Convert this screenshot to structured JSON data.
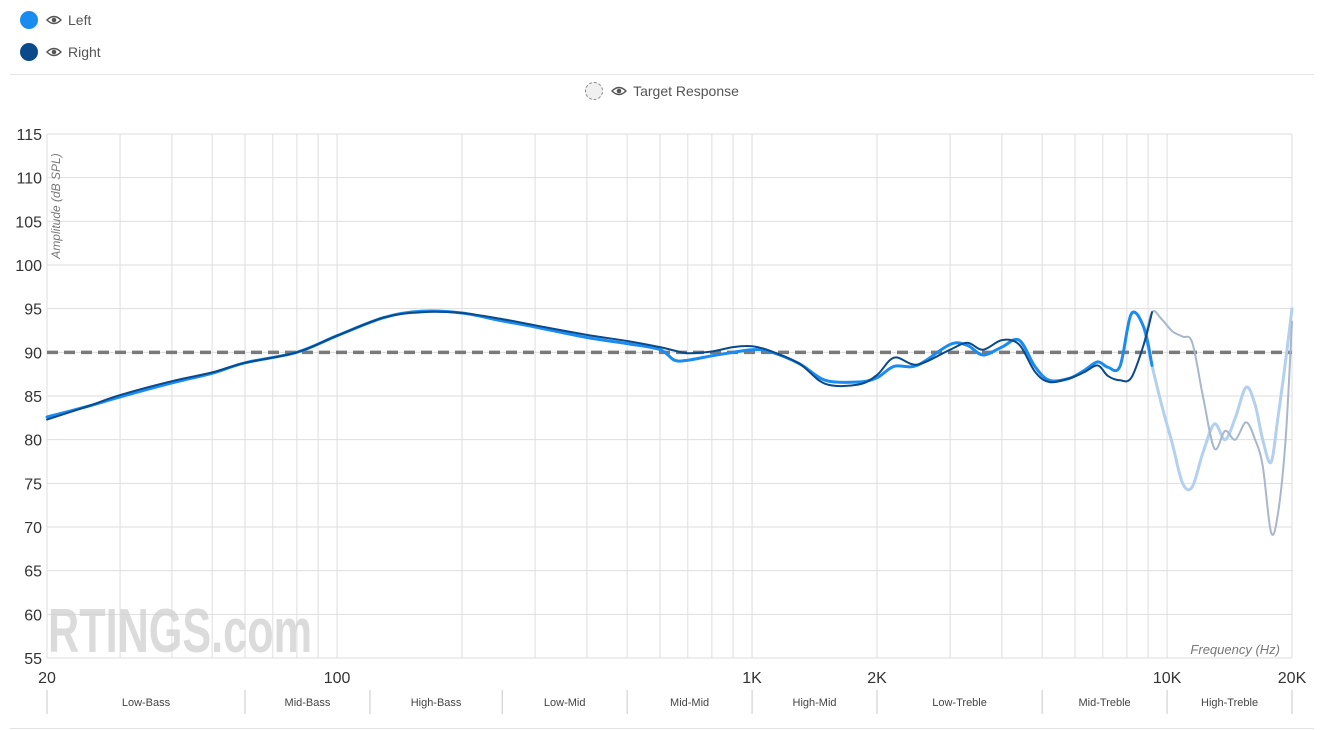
{
  "legend": {
    "left": {
      "label": "Left",
      "color": "#1a8cf0",
      "icon": "eye-icon"
    },
    "right": {
      "label": "Right",
      "color": "#0a4a8a",
      "icon": "eye-icon"
    },
    "target": {
      "label": "Target Response",
      "icon": "eye-icon"
    }
  },
  "watermark": "RTINGS.com",
  "chart_data": {
    "type": "line",
    "xscale": "log",
    "xlim": [
      20,
      20000
    ],
    "ylim": [
      55,
      115
    ],
    "ylabel": "Amplitude (dB SPL)",
    "xlabel": "Frequency (Hz)",
    "grid": true,
    "y_ticks": [
      "55",
      "60",
      "65",
      "70",
      "75",
      "80",
      "85",
      "90",
      "95",
      "100",
      "105",
      "110",
      "115"
    ],
    "x_ticks": [
      {
        "value": 20,
        "label": "20"
      },
      {
        "value": 100,
        "label": "100"
      },
      {
        "value": 1000,
        "label": "1K"
      },
      {
        "value": 2000,
        "label": "2K"
      },
      {
        "value": 10000,
        "label": "10K"
      },
      {
        "value": 20000,
        "label": "20K"
      }
    ],
    "bands": [
      {
        "label": "Low-Bass",
        "from": 20,
        "to": 60
      },
      {
        "label": "Mid-Bass",
        "from": 60,
        "to": 120
      },
      {
        "label": "High-Bass",
        "from": 120,
        "to": 250
      },
      {
        "label": "Low-Mid",
        "from": 250,
        "to": 500
      },
      {
        "label": "Mid-Mid",
        "from": 500,
        "to": 1000
      },
      {
        "label": "High-Mid",
        "from": 1000,
        "to": 2000
      },
      {
        "label": "Low-Treble",
        "from": 2000,
        "to": 5000
      },
      {
        "label": "Mid-Treble",
        "from": 5000,
        "to": 10000
      },
      {
        "label": "High-Treble",
        "from": 10000,
        "to": 20000
      }
    ],
    "target_level": 90,
    "fade_start": 9000,
    "series": [
      {
        "name": "Left",
        "color": "#1a8cf0",
        "fade_color": "#b3d0ef",
        "x": [
          20,
          25,
          30,
          40,
          50,
          60,
          80,
          100,
          130,
          160,
          200,
          250,
          300,
          400,
          500,
          600,
          650,
          700,
          800,
          900,
          1000,
          1100,
          1300,
          1500,
          1800,
          2000,
          2200,
          2500,
          3000,
          3300,
          3600,
          4000,
          4400,
          4800,
          5200,
          5800,
          6300,
          6800,
          7200,
          7700,
          8200,
          8800,
          9200,
          9700,
          10300,
          10900,
          11500,
          12200,
          13000,
          13800,
          14600,
          15500,
          16300,
          17000,
          17800,
          18500,
          19300,
          20000
        ],
        "y": [
          82.6,
          83.8,
          84.9,
          86.5,
          87.6,
          88.8,
          90.0,
          91.9,
          94.0,
          94.7,
          94.5,
          93.6,
          92.9,
          91.7,
          91.0,
          90.3,
          89.1,
          89.1,
          89.6,
          90.0,
          90.3,
          90.1,
          88.7,
          86.8,
          86.6,
          87.1,
          88.4,
          88.5,
          90.9,
          90.8,
          89.7,
          90.6,
          91.4,
          88.4,
          86.8,
          87.0,
          87.9,
          88.9,
          88.3,
          88.4,
          94.4,
          92.8,
          88.5,
          84.0,
          79.5,
          75.0,
          74.6,
          78.5,
          81.8,
          80.0,
          82.5,
          86.0,
          84.0,
          80.0,
          77.4,
          82.5,
          89.0,
          95.0
        ]
      },
      {
        "name": "Right",
        "color": "#0a4a8a",
        "fade_color": "#a9b6cc",
        "x": [
          20,
          25,
          30,
          40,
          50,
          60,
          80,
          100,
          130,
          160,
          200,
          250,
          300,
          400,
          500,
          600,
          650,
          700,
          800,
          900,
          1000,
          1100,
          1300,
          1500,
          1800,
          2000,
          2200,
          2500,
          3000,
          3300,
          3600,
          4000,
          4400,
          4800,
          5200,
          5800,
          6300,
          6800,
          7200,
          7700,
          8200,
          8800,
          9200,
          9700,
          10300,
          10900,
          11500,
          12200,
          13000,
          13800,
          14600,
          15500,
          16300,
          17000,
          17800,
          18500,
          19300,
          20000
        ],
        "y": [
          82.3,
          83.8,
          85.1,
          86.7,
          87.7,
          88.8,
          90.0,
          91.9,
          94.0,
          94.6,
          94.5,
          93.8,
          93.1,
          92.0,
          91.3,
          90.6,
          90.2,
          89.9,
          90.1,
          90.6,
          90.7,
          90.2,
          88.7,
          86.4,
          86.3,
          87.4,
          89.4,
          88.6,
          90.3,
          91.1,
          90.3,
          91.4,
          90.9,
          87.8,
          86.6,
          87.0,
          87.7,
          88.5,
          87.3,
          86.8,
          87.1,
          91.0,
          94.6,
          93.8,
          92.4,
          91.8,
          91.1,
          85.0,
          79.0,
          81.0,
          80.0,
          82.0,
          80.0,
          77.0,
          69.4,
          71.5,
          80.0,
          93.5
        ]
      }
    ]
  }
}
